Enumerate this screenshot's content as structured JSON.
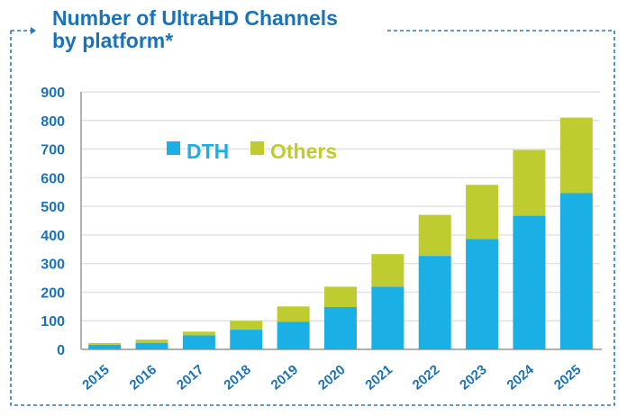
{
  "chart_data": {
    "type": "bar",
    "stacked": true,
    "title": "Number of UltraHD Channels by platform*",
    "title_lines": [
      "Number of UltraHD Channels",
      "by platform*"
    ],
    "categories": [
      "2015",
      "2016",
      "2017",
      "2018",
      "2019",
      "2020",
      "2021",
      "2022",
      "2023",
      "2024",
      "2025"
    ],
    "series": [
      {
        "name": "DTH",
        "color": "#1ab0e6",
        "values": [
          16,
          23,
          49,
          69,
          97,
          148,
          219,
          327,
          386,
          467,
          546
        ]
      },
      {
        "name": "Others",
        "color": "#bfcc2f",
        "values": [
          6,
          11,
          13,
          31,
          53,
          71,
          114,
          143,
          189,
          230,
          264
        ]
      }
    ],
    "ylim": [
      0,
      900
    ],
    "yticks": [
      0,
      100,
      200,
      300,
      400,
      500,
      600,
      700,
      800,
      900
    ],
    "grid": true,
    "legend": "top-left",
    "xlabel": "",
    "ylabel": "",
    "colors": {
      "title": "#1a72b8",
      "ticks": "#1a72b8",
      "frame": "#2a78b8"
    }
  }
}
